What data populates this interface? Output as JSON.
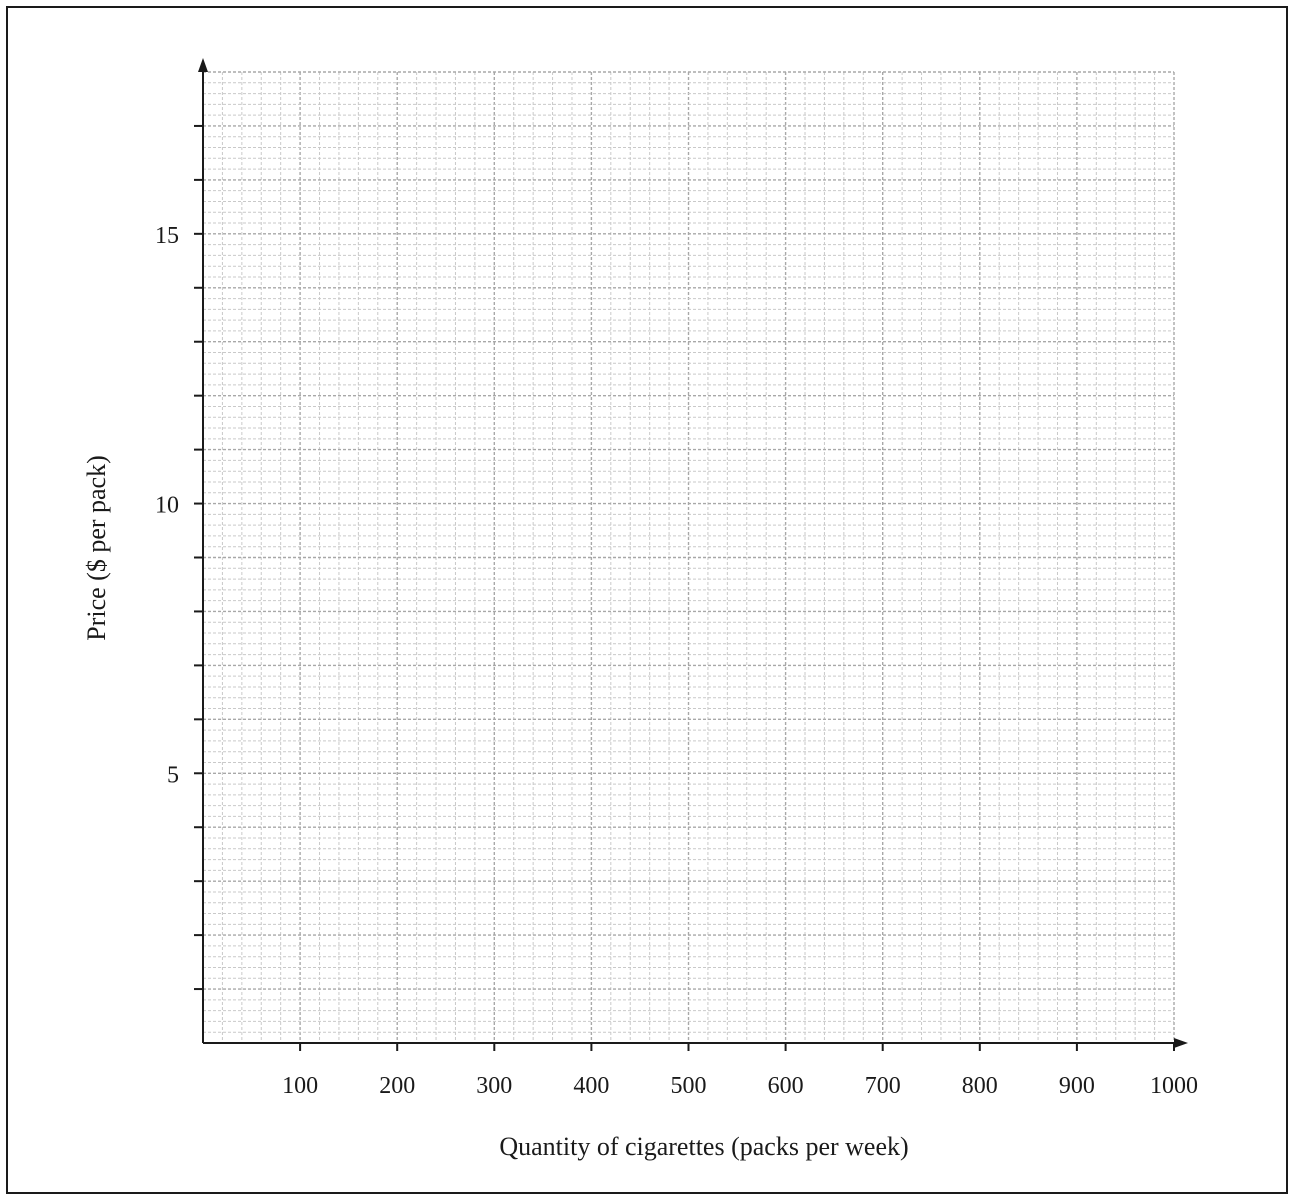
{
  "chart_data": {
    "type": "scatter",
    "title": "",
    "xlabel": "Quantity of cigarettes (packs per week)",
    "ylabel": "Price ($ per pack)",
    "xlim": [
      0,
      1000
    ],
    "ylim": [
      0,
      18
    ],
    "x_ticks": [
      100,
      200,
      300,
      400,
      500,
      600,
      700,
      800,
      900,
      1000
    ],
    "x_tick_labels": [
      "100",
      "200",
      "300",
      "400",
      "500",
      "600",
      "700",
      "800",
      "900",
      "1000"
    ],
    "y_ticks": [
      1,
      2,
      3,
      4,
      5,
      6,
      7,
      8,
      9,
      10,
      11,
      12,
      13,
      14,
      15,
      16,
      17
    ],
    "y_tick_labels": [
      "5",
      "10",
      "15"
    ],
    "y_labeled_values": [
      5,
      10,
      15
    ],
    "grid": true,
    "grid_minor_x": 20,
    "grid_minor_y": 0.2,
    "series": [],
    "colors": {
      "axis": "#1a1a1a",
      "grid_major": "#a8a8a8",
      "grid_minor": "#c9c9c9"
    }
  }
}
